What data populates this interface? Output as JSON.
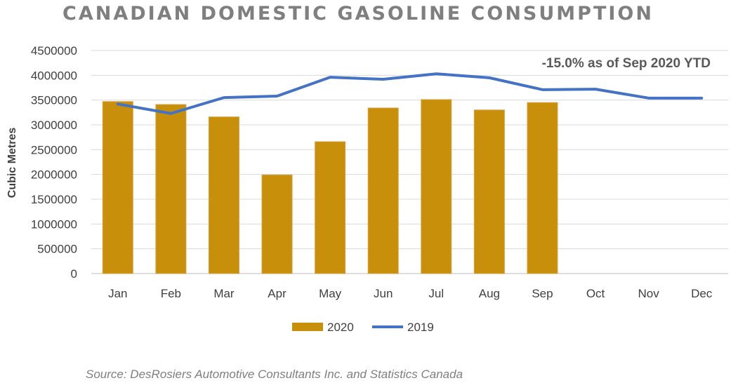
{
  "chart_data": {
    "type": "bar+line",
    "title": "CANADIAN DOMESTIC GASOLINE CONSUMPTION",
    "ylabel": "Cubic Metres",
    "xlabel": "",
    "categories": [
      "Jan",
      "Feb",
      "Mar",
      "Apr",
      "May",
      "Jun",
      "Jul",
      "Aug",
      "Sep",
      "Oct",
      "Nov",
      "Dec"
    ],
    "ylim": [
      0,
      4500000
    ],
    "yticks": [
      "0",
      "500000",
      "1000000",
      "1500000",
      "2000000",
      "2500000",
      "3000000",
      "3500000",
      "4000000",
      "4500000"
    ],
    "grid": true,
    "legend_placement": "bottom",
    "series": [
      {
        "name": "2020",
        "type": "bar",
        "color": "#c8900a",
        "values": [
          3470000,
          3410000,
          3160000,
          1990000,
          2660000,
          3340000,
          3510000,
          3300000,
          3450000,
          null,
          null,
          null
        ]
      },
      {
        "name": "2019",
        "type": "line",
        "color": "#4472c4",
        "values": [
          3420000,
          3230000,
          3550000,
          3580000,
          3960000,
          3920000,
          4030000,
          3950000,
          3710000,
          3720000,
          3540000,
          3540000
        ]
      }
    ],
    "annotation": "-15.0% as of Sep 2020 YTD"
  },
  "source": "Source: DesRosiers Automotive Consultants Inc. and Statistics Canada"
}
